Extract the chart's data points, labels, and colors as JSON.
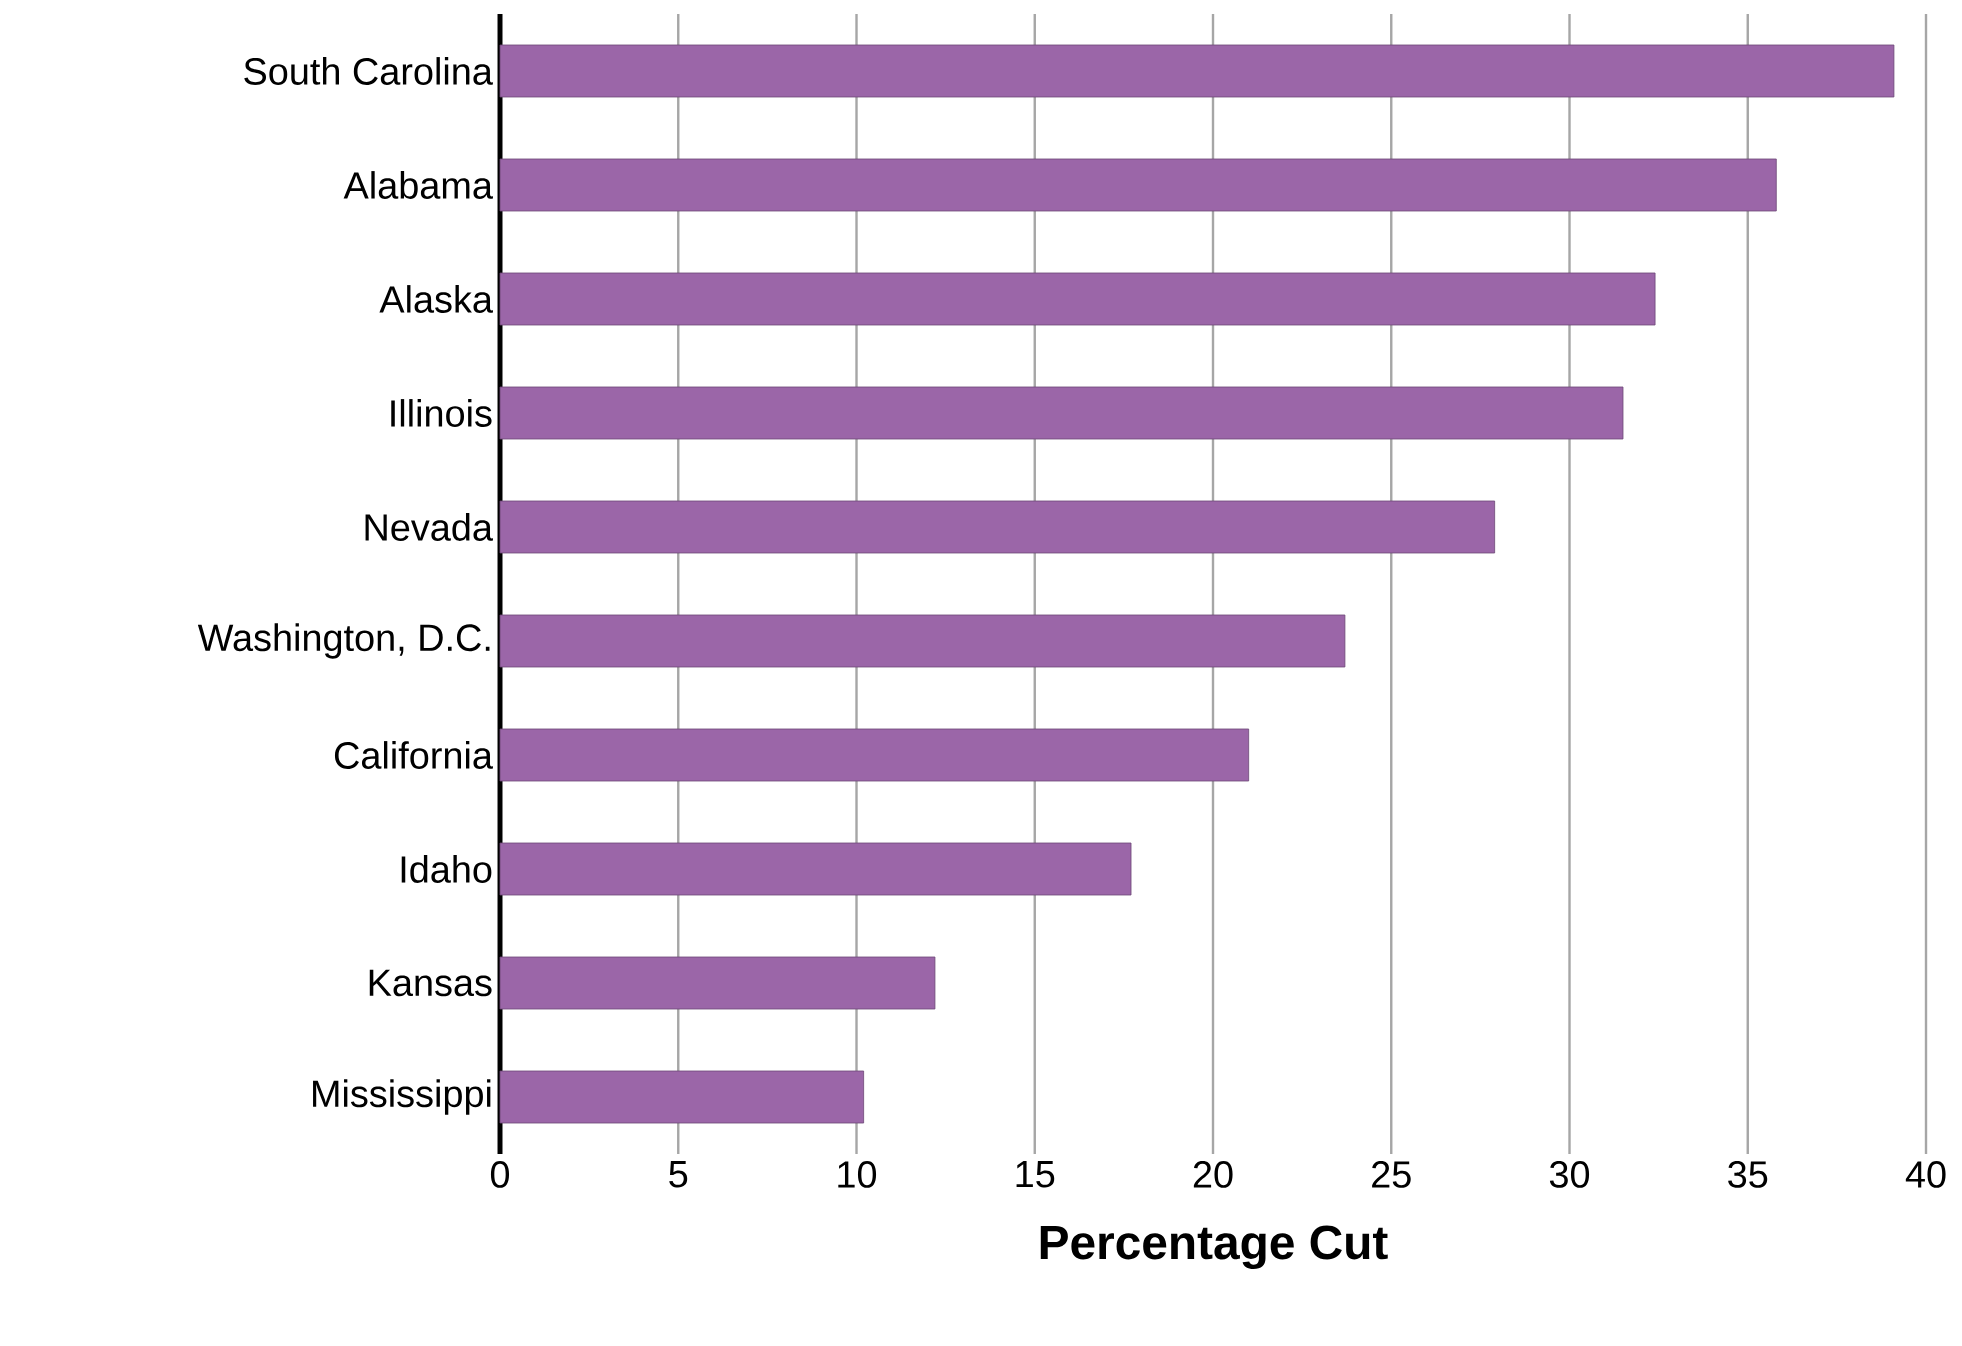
{
  "chart_data": {
    "type": "bar",
    "orientation": "horizontal",
    "xlabel": "Percentage Cut",
    "categories": [
      "South Carolina",
      "Alabama",
      "Alaska",
      "Illinois",
      "Nevada",
      "Washington, D.C.",
      "California",
      "Idaho",
      "Kansas",
      "Mississippi"
    ],
    "values": [
      39.1,
      35.8,
      32.4,
      31.5,
      27.9,
      23.7,
      21.0,
      17.7,
      12.2,
      10.2
    ],
    "color": "#9b66a8",
    "xlim": [
      0,
      40
    ],
    "xticks": [
      0,
      5,
      10,
      15,
      20,
      25,
      30,
      35,
      40
    ],
    "grid": "x"
  }
}
